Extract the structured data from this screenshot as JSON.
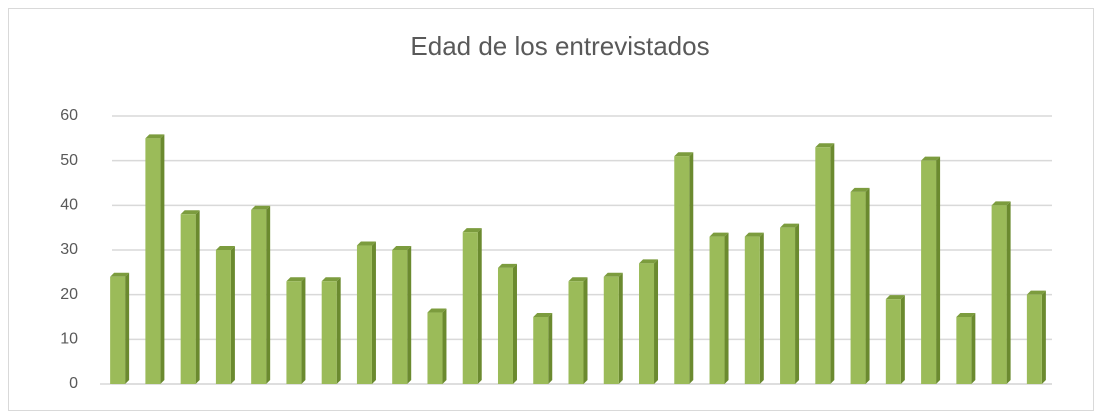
{
  "chart_data": {
    "type": "bar",
    "title": "Edad de los entrevistados",
    "categories": [
      null,
      null,
      null,
      null,
      null,
      null,
      null,
      null,
      null,
      null,
      null,
      null,
      null,
      null,
      null,
      null,
      null,
      null,
      null,
      null,
      null,
      null,
      null,
      null,
      null,
      null,
      null
    ],
    "values": [
      24,
      55,
      38,
      30,
      39,
      23,
      23,
      31,
      30,
      16,
      34,
      26,
      15,
      23,
      24,
      27,
      51,
      33,
      33,
      35,
      53,
      43,
      19,
      50,
      15,
      40,
      20
    ],
    "color": "#9bbb59",
    "ylim": [
      0,
      60
    ],
    "yticks": [
      0,
      10,
      20,
      30,
      40,
      50,
      60
    ],
    "grid": true
  }
}
